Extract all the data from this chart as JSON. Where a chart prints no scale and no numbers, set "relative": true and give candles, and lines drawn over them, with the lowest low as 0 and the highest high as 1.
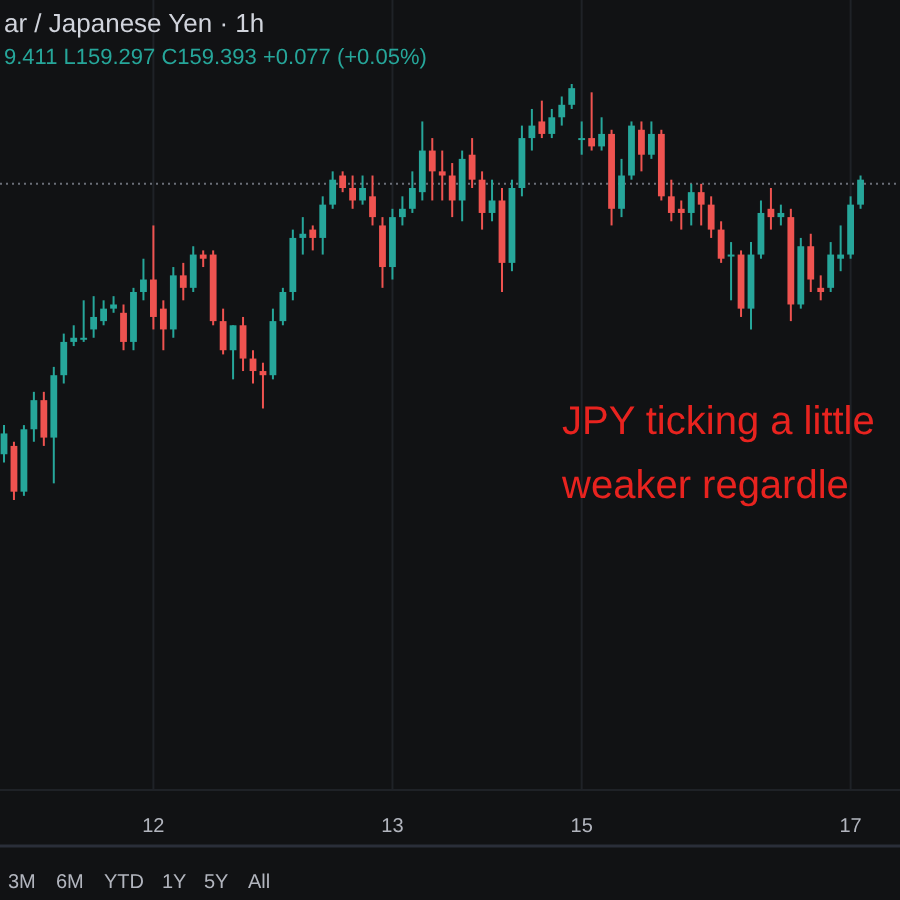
{
  "chart_data": {
    "type": "candlestick",
    "title": "ar / Japanese Yen · 1h",
    "subtitle": "9.411 L159.297 C159.393 +0.077 (+0.05%)",
    "relative": true,
    "grid": "x",
    "categories": [
      null,
      null,
      null,
      null,
      null,
      null,
      null,
      null,
      null,
      null,
      null,
      null,
      null,
      null,
      null,
      "12",
      null,
      null,
      null,
      null,
      null,
      null,
      null,
      null,
      null,
      null,
      null,
      null,
      null,
      null,
      null,
      null,
      null,
      null,
      null,
      null,
      null,
      null,
      null,
      "13",
      null,
      null,
      null,
      null,
      null,
      null,
      null,
      null,
      null,
      null,
      null,
      null,
      null,
      null,
      null,
      null,
      null,
      null,
      "15",
      null,
      null,
      null,
      null,
      null,
      null,
      null,
      null,
      null,
      null,
      null,
      null,
      null,
      null,
      null,
      null,
      null,
      null,
      null,
      null,
      null,
      null,
      null,
      null,
      null,
      null,
      "17",
      null
    ],
    "ohlc": [
      [
        0.11,
        0.18,
        0.09,
        0.16
      ],
      [
        0.13,
        0.14,
        0,
        0.02
      ],
      [
        0.02,
        0.18,
        0.01,
        0.17
      ],
      [
        0.17,
        0.26,
        0.14,
        0.24
      ],
      [
        0.24,
        0.26,
        0.13,
        0.15
      ],
      [
        0.15,
        0.32,
        0.04,
        0.3
      ],
      [
        0.3,
        0.4,
        0.28,
        0.38
      ],
      [
        0.38,
        0.42,
        0.37,
        0.39
      ],
      [
        0.39,
        0.48,
        0.38,
        0.39
      ],
      [
        0.41,
        0.49,
        0.39,
        0.44
      ],
      [
        0.43,
        0.48,
        0.42,
        0.46
      ],
      [
        0.46,
        0.49,
        0.45,
        0.47
      ],
      [
        0.45,
        0.47,
        0.36,
        0.38
      ],
      [
        0.38,
        0.51,
        0.36,
        0.5
      ],
      [
        0.5,
        0.58,
        0.48,
        0.53
      ],
      [
        0.53,
        0.66,
        0.41,
        0.44
      ],
      [
        0.46,
        0.48,
        0.36,
        0.41
      ],
      [
        0.41,
        0.56,
        0.39,
        0.54
      ],
      [
        0.54,
        0.57,
        0.48,
        0.51
      ],
      [
        0.51,
        0.61,
        0.5,
        0.59
      ],
      [
        0.59,
        0.6,
        0.56,
        0.58
      ],
      [
        0.59,
        0.6,
        0.42,
        0.43
      ],
      [
        0.43,
        0.46,
        0.35,
        0.36
      ],
      [
        0.36,
        0.42,
        0.29,
        0.42
      ],
      [
        0.42,
        0.44,
        0.31,
        0.34
      ],
      [
        0.34,
        0.36,
        0.28,
        0.31
      ],
      [
        0.31,
        0.33,
        0.22,
        0.3
      ],
      [
        0.3,
        0.46,
        0.29,
        0.43
      ],
      [
        0.43,
        0.51,
        0.42,
        0.5
      ],
      [
        0.5,
        0.65,
        0.48,
        0.63
      ],
      [
        0.63,
        0.68,
        0.59,
        0.64
      ],
      [
        0.65,
        0.66,
        0.6,
        0.63
      ],
      [
        0.63,
        0.73,
        0.59,
        0.71
      ],
      [
        0.71,
        0.79,
        0.7,
        0.77
      ],
      [
        0.78,
        0.79,
        0.74,
        0.75
      ],
      [
        0.75,
        0.78,
        0.7,
        0.72
      ],
      [
        0.72,
        0.78,
        0.71,
        0.75
      ],
      [
        0.73,
        0.78,
        0.66,
        0.68
      ],
      [
        0.66,
        0.68,
        0.51,
        0.56
      ],
      [
        0.56,
        0.7,
        0.53,
        0.68
      ],
      [
        0.68,
        0.73,
        0.66,
        0.7
      ],
      [
        0.7,
        0.79,
        0.69,
        0.75
      ],
      [
        0.74,
        0.91,
        0.72,
        0.84
      ],
      [
        0.84,
        0.87,
        0.72,
        0.79
      ],
      [
        0.79,
        0.84,
        0.72,
        0.78
      ],
      [
        0.78,
        0.81,
        0.68,
        0.72
      ],
      [
        0.72,
        0.84,
        0.67,
        0.82
      ],
      [
        0.83,
        0.87,
        0.75,
        0.77
      ],
      [
        0.77,
        0.79,
        0.65,
        0.69
      ],
      [
        0.69,
        0.77,
        0.67,
        0.72
      ],
      [
        0.72,
        0.75,
        0.5,
        0.57
      ],
      [
        0.57,
        0.77,
        0.55,
        0.75
      ],
      [
        0.75,
        0.9,
        0.73,
        0.87
      ],
      [
        0.87,
        0.94,
        0.84,
        0.9
      ],
      [
        0.91,
        0.96,
        0.87,
        0.88
      ],
      [
        0.88,
        0.94,
        0.87,
        0.92
      ],
      [
        0.92,
        0.97,
        0.9,
        0.95
      ],
      [
        0.95,
        1.0,
        0.94,
        0.99
      ],
      [
        0.87,
        0.91,
        0.83,
        0.87
      ],
      [
        0.87,
        0.98,
        0.84,
        0.85
      ],
      [
        0.85,
        0.92,
        0.84,
        0.88
      ],
      [
        0.88,
        0.89,
        0.66,
        0.7
      ],
      [
        0.7,
        0.82,
        0.68,
        0.78
      ],
      [
        0.78,
        0.91,
        0.77,
        0.9
      ],
      [
        0.89,
        0.91,
        0.79,
        0.83
      ],
      [
        0.83,
        0.91,
        0.82,
        0.88
      ],
      [
        0.88,
        0.89,
        0.72,
        0.73
      ],
      [
        0.73,
        0.77,
        0.67,
        0.69
      ],
      [
        0.7,
        0.72,
        0.65,
        0.69
      ],
      [
        0.69,
        0.76,
        0.66,
        0.74
      ],
      [
        0.74,
        0.76,
        0.66,
        0.71
      ],
      [
        0.71,
        0.73,
        0.63,
        0.65
      ],
      [
        0.65,
        0.67,
        0.57,
        0.58
      ],
      [
        0.59,
        0.62,
        0.48,
        0.59
      ],
      [
        0.59,
        0.6,
        0.44,
        0.46
      ],
      [
        0.46,
        0.62,
        0.41,
        0.59
      ],
      [
        0.59,
        0.72,
        0.58,
        0.69
      ],
      [
        0.7,
        0.75,
        0.65,
        0.68
      ],
      [
        0.68,
        0.71,
        0.66,
        0.69
      ],
      [
        0.68,
        0.7,
        0.43,
        0.47
      ],
      [
        0.47,
        0.63,
        0.46,
        0.61
      ],
      [
        0.61,
        0.64,
        0.5,
        0.53
      ],
      [
        0.51,
        0.54,
        0.48,
        0.5
      ],
      [
        0.51,
        0.62,
        0.5,
        0.59
      ],
      [
        0.58,
        0.66,
        0.55,
        0.59
      ],
      [
        0.59,
        0.73,
        0.58,
        0.71
      ],
      [
        0.71,
        0.78,
        0.7,
        0.77
      ]
    ],
    "ref_lines": [
      {
        "axis": "y",
        "value": 0.76,
        "line_style": "dotted",
        "color": "#6b6f78"
      }
    ],
    "annotations": [
      "JPY ticking a little",
      "weaker regardle",
      "3M",
      "6M",
      "YTD",
      "1Y",
      "5Y",
      "All"
    ]
  }
}
